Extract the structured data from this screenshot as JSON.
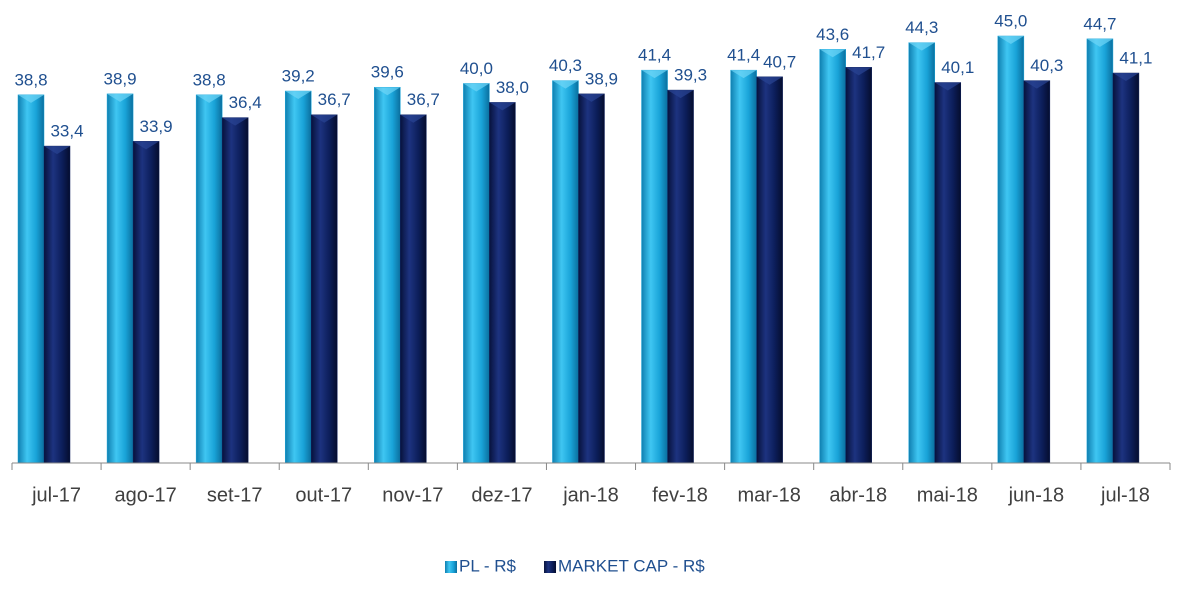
{
  "chart_data": {
    "type": "bar",
    "categories": [
      "jul-17",
      "ago-17",
      "set-17",
      "out-17",
      "nov-17",
      "dez-17",
      "jan-18",
      "fev-18",
      "mar-18",
      "abr-18",
      "mai-18",
      "jun-18",
      "jul-18"
    ],
    "series": [
      {
        "name": "PL - R$",
        "color": "#19a3d8",
        "values": [
          38.8,
          38.9,
          38.8,
          39.2,
          39.6,
          40.0,
          40.3,
          41.4,
          41.4,
          43.6,
          44.3,
          45.0,
          44.7
        ],
        "value_labels": [
          "38,8",
          "38,9",
          "38,8",
          "39,2",
          "39,6",
          "40,0",
          "40,3",
          "41,4",
          "41,4",
          "43,6",
          "44,3",
          "45,0",
          "44,7"
        ]
      },
      {
        "name": "MARKET CAP - R$",
        "color": "#0c1e5a",
        "values": [
          33.4,
          33.9,
          36.4,
          36.7,
          36.7,
          38.0,
          38.9,
          39.3,
          40.7,
          41.7,
          40.1,
          40.3,
          41.1
        ],
        "value_labels": [
          "33,4",
          "33,9",
          "36,4",
          "36,7",
          "36,7",
          "38,0",
          "38,9",
          "39,3",
          "40,7",
          "41,7",
          "40,1",
          "40,3",
          "41,1"
        ]
      }
    ]
  }
}
